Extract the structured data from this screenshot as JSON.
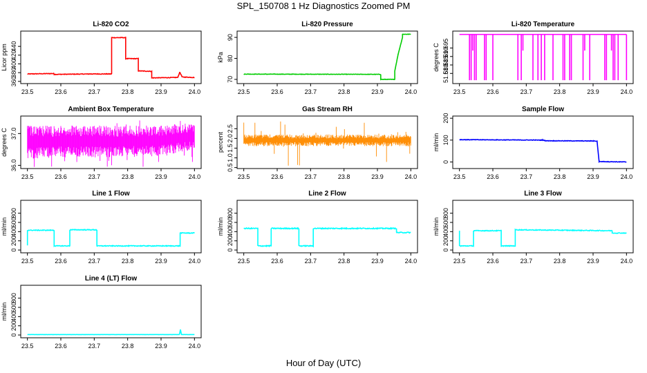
{
  "title": "SPL_150708  1 Hz Diagnostics Zoomed PM",
  "xlabel": "Hour of Day (UTC)",
  "chart_data": [
    {
      "type": "line",
      "title": "Li-820 CO2",
      "ylabel": "Licor ppm",
      "color": "#ff0000",
      "xlim": [
        23.48,
        24.02
      ],
      "ylim": [
        355,
        475
      ],
      "xticks": [
        "23.5",
        "23.6",
        "23.7",
        "23.8",
        "23.9",
        "24.0"
      ],
      "yticks": [
        "360",
        "380",
        "400",
        "420",
        "440"
      ],
      "x": [
        23.5,
        23.58,
        23.58,
        23.69,
        23.752,
        23.752,
        23.794,
        23.794,
        23.832,
        23.832,
        23.872,
        23.872,
        23.95,
        23.956,
        23.962,
        23.962,
        24.0
      ],
      "y": [
        377,
        378,
        376,
        377,
        377,
        460,
        460,
        412,
        412,
        384,
        383,
        368,
        369,
        381,
        372,
        370,
        369
      ],
      "noise": 0.7
    },
    {
      "type": "line",
      "title": "Li-820 Pressure",
      "ylabel": "kPa",
      "color": "#00cc00",
      "xlim": [
        23.48,
        24.02
      ],
      "ylim": [
        68,
        93
      ],
      "xticks": [
        "23.5",
        "23.6",
        "23.7",
        "23.8",
        "23.9",
        "24.0"
      ],
      "yticks": [
        "70",
        "80",
        "90"
      ],
      "x": [
        23.5,
        23.91,
        23.91,
        23.952,
        23.952,
        23.962,
        23.975,
        23.975,
        24.0
      ],
      "y": [
        72.5,
        72.4,
        70,
        70,
        74,
        82,
        90,
        91.5,
        91.5
      ],
      "noise": 0.1
    },
    {
      "type": "spikes",
      "title": "Li-820 Temperature",
      "ylabel": "degrees C",
      "color": "#ff00ff",
      "xlim": [
        23.48,
        24.02
      ],
      "ylim": [
        51.674,
        51.705
      ],
      "xticks": [
        "23.5",
        "23.6",
        "23.7",
        "23.8",
        "23.9",
        "24.0"
      ],
      "yticks": [
        "51.680",
        "51.685",
        "51.690",
        "51.695"
      ],
      "baseline": 51.703,
      "spike_low": 51.676,
      "spike_x": [
        23.53,
        23.535,
        23.54,
        23.545,
        23.55,
        23.575,
        23.58,
        23.6,
        23.675,
        23.685,
        23.69,
        23.72,
        23.735,
        23.745,
        23.755,
        23.78,
        23.81,
        23.815,
        23.83,
        23.835,
        23.87,
        23.875,
        23.89,
        23.935,
        23.94,
        23.955,
        23.96,
        23.965,
        23.975,
        24.0
      ],
      "spike_partial": [
        23.54,
        23.69,
        23.875,
        23.955
      ]
    },
    {
      "type": "band",
      "title": "Ambient Box Temperature",
      "ylabel": "degrees C",
      "color": "#ff00ff",
      "xlim": [
        23.48,
        24.02
      ],
      "ylim": [
        35.9,
        37.55
      ],
      "xticks": [
        "23.5",
        "23.6",
        "23.7",
        "23.8",
        "23.9",
        "24.0"
      ],
      "yticks": [
        "36.0",
        "37.0"
      ],
      "x": [
        23.5,
        23.6,
        23.7,
        23.8,
        23.9,
        24.0
      ],
      "upper": [
        37.25,
        37.25,
        37.25,
        37.25,
        37.25,
        37.35
      ],
      "lower": [
        36.2,
        36.25,
        36.25,
        36.25,
        36.3,
        36.5
      ],
      "min_excursion": 35.95,
      "max_excursion": 37.45
    },
    {
      "type": "band",
      "title": "Gas Stream RH",
      "ylabel": "percent",
      "color": "#ff8c00",
      "xlim": [
        23.48,
        24.02
      ],
      "ylim": [
        0.45,
        3.15
      ],
      "xticks": [
        "23.5",
        "23.6",
        "23.7",
        "23.8",
        "23.9",
        "24.0"
      ],
      "yticks": [
        "0.5",
        "1.0",
        "1.5",
        "2.0",
        "2.5"
      ],
      "x": [
        23.5,
        23.6,
        23.7,
        23.8,
        23.9,
        24.0
      ],
      "upper": [
        2.2,
        2.2,
        2.2,
        2.2,
        2.2,
        2.2
      ],
      "lower": [
        1.6,
        1.6,
        1.6,
        1.6,
        1.6,
        1.6
      ],
      "min_excursion": 0.55,
      "max_excursion": 3.0
    },
    {
      "type": "line",
      "title": "Sample Flow",
      "ylabel": "ml/min",
      "color": "#0000ff",
      "xlim": [
        23.48,
        24.02
      ],
      "ylim": [
        -30,
        210
      ],
      "xticks": [
        "23.5",
        "23.6",
        "23.7",
        "23.8",
        "23.9",
        "24.0"
      ],
      "yticks": [
        "0",
        "100",
        "200"
      ],
      "x": [
        23.5,
        23.75,
        23.76,
        23.9,
        23.912,
        23.918,
        24.0
      ],
      "y": [
        102,
        100,
        97,
        96,
        95,
        2,
        0
      ],
      "noise": 1.2
    },
    {
      "type": "line",
      "title": "Line 1 Flow",
      "ylabel": "ml/min",
      "color": "#00ffff",
      "xlim": [
        23.48,
        24.02
      ],
      "ylim": [
        -60,
        1080
      ],
      "xticks": [
        "23.5",
        "23.6",
        "23.7",
        "23.8",
        "23.9",
        "24.0"
      ],
      "yticks": [
        "0",
        "200",
        "400",
        "600",
        "800"
      ],
      "x": [
        23.5,
        23.5,
        23.58,
        23.58,
        23.627,
        23.627,
        23.708,
        23.708,
        23.957,
        23.957,
        24.0
      ],
      "y": [
        100,
        430,
        430,
        90,
        90,
        440,
        440,
        90,
        90,
        370,
        370
      ],
      "noise": 8
    },
    {
      "type": "line",
      "title": "Line 2 Flow",
      "ylabel": "ml/min",
      "color": "#00ffff",
      "xlim": [
        23.48,
        24.02
      ],
      "ylim": [
        -60,
        1080
      ],
      "xticks": [
        "23.5",
        "23.6",
        "23.7",
        "23.8",
        "23.9",
        "24.0"
      ],
      "yticks": [
        "0",
        "200",
        "400",
        "600",
        "800"
      ],
      "x": [
        23.5,
        23.542,
        23.542,
        23.582,
        23.582,
        23.665,
        23.665,
        23.708,
        23.708,
        23.957,
        23.957,
        24.0
      ],
      "y": [
        470,
        470,
        90,
        90,
        470,
        470,
        90,
        90,
        470,
        470,
        380,
        380
      ],
      "noise": 10
    },
    {
      "type": "line",
      "title": "Line 3 Flow",
      "ylabel": "ml/min",
      "color": "#00ffff",
      "xlim": [
        23.48,
        24.02
      ],
      "ylim": [
        -60,
        1080
      ],
      "xticks": [
        "23.5",
        "23.6",
        "23.7",
        "23.8",
        "23.9",
        "24.0"
      ],
      "yticks": [
        "0",
        "200",
        "400",
        "600",
        "800"
      ],
      "x": [
        23.5,
        23.5,
        23.542,
        23.542,
        23.625,
        23.625,
        23.667,
        23.667,
        23.957,
        23.957,
        24.0
      ],
      "y": [
        420,
        90,
        90,
        420,
        420,
        90,
        90,
        440,
        420,
        370,
        370
      ],
      "noise": 8
    },
    {
      "type": "line",
      "title": "Line 4 (LT) Flow",
      "ylabel": "ml/min",
      "color": "#00ffff",
      "xlim": [
        23.48,
        24.02
      ],
      "ylim": [
        -60,
        1080
      ],
      "xticks": [
        "23.5",
        "23.6",
        "23.7",
        "23.8",
        "23.9",
        "24.0"
      ],
      "yticks": [
        "0",
        "200",
        "400",
        "600",
        "800"
      ],
      "x": [
        23.5,
        23.955,
        23.958,
        23.961,
        24.0
      ],
      "y": [
        10,
        10,
        120,
        10,
        10
      ],
      "noise": 1
    }
  ]
}
